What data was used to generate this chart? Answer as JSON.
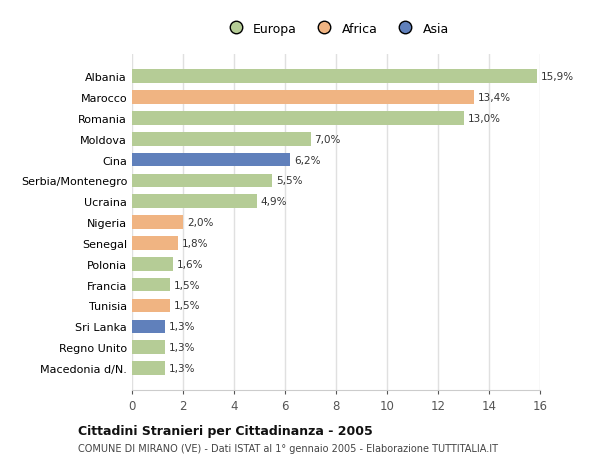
{
  "countries": [
    "Albania",
    "Marocco",
    "Romania",
    "Moldova",
    "Cina",
    "Serbia/Montenegro",
    "Ucraina",
    "Nigeria",
    "Senegal",
    "Polonia",
    "Francia",
    "Tunisia",
    "Sri Lanka",
    "Regno Unito",
    "Macedonia d/N."
  ],
  "values": [
    15.9,
    13.4,
    13.0,
    7.0,
    6.2,
    5.5,
    4.9,
    2.0,
    1.8,
    1.6,
    1.5,
    1.5,
    1.3,
    1.3,
    1.3
  ],
  "continents": [
    "Europa",
    "Africa",
    "Europa",
    "Europa",
    "Asia",
    "Europa",
    "Europa",
    "Africa",
    "Africa",
    "Europa",
    "Europa",
    "Africa",
    "Asia",
    "Europa",
    "Europa"
  ],
  "colors": {
    "Europa": "#b5cc96",
    "Africa": "#f0b482",
    "Asia": "#6080bb"
  },
  "xlim": [
    0,
    16
  ],
  "xticks": [
    0,
    2,
    4,
    6,
    8,
    10,
    12,
    14,
    16
  ],
  "title": "Cittadini Stranieri per Cittadinanza - 2005",
  "subtitle": "COMUNE DI MIRANO (VE) - Dati ISTAT al 1° gennaio 2005 - Elaborazione TUTTITALIA.IT",
  "bg_color": "#ffffff",
  "grid_color": "#e0e0e0",
  "bar_height": 0.65
}
